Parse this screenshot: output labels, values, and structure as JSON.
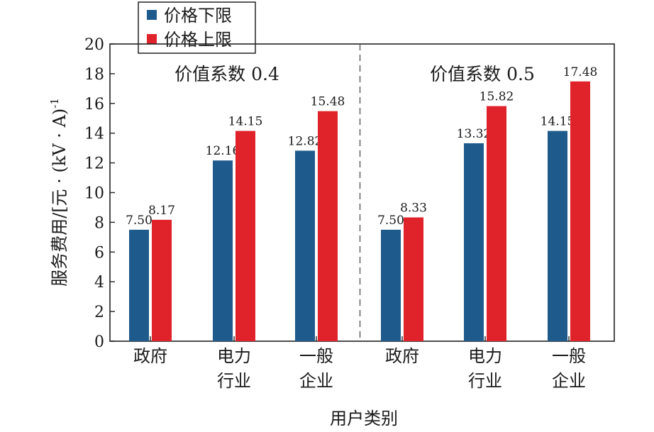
{
  "chart_data": {
    "type": "bar",
    "ylabel": "服务费用/[元 · (kV · A)",
    "ylabel_sup": "-1",
    "xlabel": "用户类别",
    "ylim": [
      0,
      20
    ],
    "yticks": [
      0,
      2,
      4,
      6,
      8,
      10,
      12,
      14,
      16,
      18,
      20
    ],
    "grid": false,
    "legend_position": "top-left",
    "categories": [
      [
        "政府"
      ],
      [
        "电力",
        "行业"
      ],
      [
        "一般",
        "企业"
      ],
      [
        "政府"
      ],
      [
        "电力",
        "行业"
      ],
      [
        "一般",
        "企业"
      ]
    ],
    "groups": [
      {
        "label": "价值系数 0.4",
        "category_indices": [
          0,
          1,
          2
        ]
      },
      {
        "label": "价值系数 0.5",
        "category_indices": [
          3,
          4,
          5
        ]
      }
    ],
    "series": [
      {
        "name": "价格下限",
        "color": "#1f5a8c",
        "values": [
          7.5,
          12.16,
          12.82,
          7.5,
          13.32,
          14.15
        ]
      },
      {
        "name": "价格上限",
        "color": "#e0222b",
        "values": [
          8.17,
          14.15,
          15.48,
          8.33,
          15.82,
          17.48
        ]
      }
    ]
  }
}
